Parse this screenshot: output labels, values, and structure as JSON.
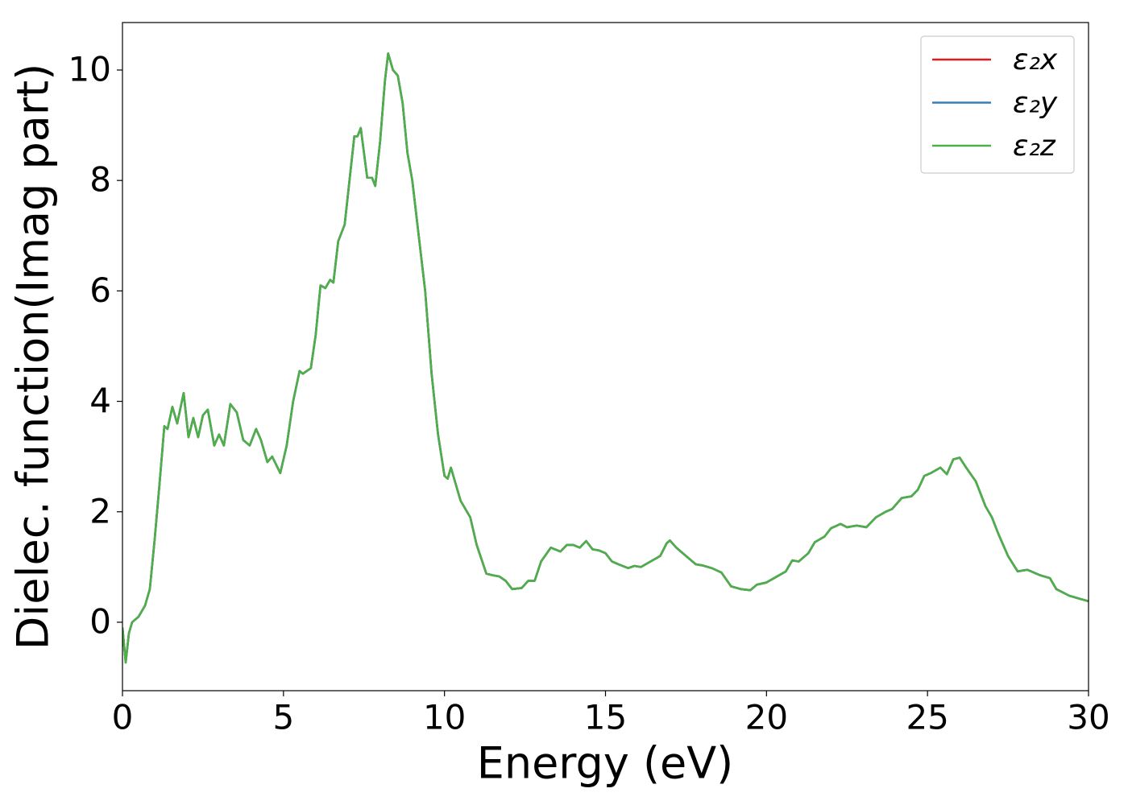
{
  "chart_data": {
    "type": "line",
    "xlabel": "Energy (eV)",
    "ylabel": "Dielec. function(Imag part)",
    "xlim": [
      0,
      30
    ],
    "ylim": [
      -1.24,
      10.86
    ],
    "xticks": [
      0,
      5,
      10,
      15,
      20,
      25,
      30
    ],
    "yticks": [
      0,
      2,
      4,
      6,
      8,
      10
    ],
    "grid": false,
    "legend": "upper right",
    "x": [
      0,
      0.1,
      0.2,
      0.3,
      0.5,
      0.7,
      0.85,
      1.0,
      1.15,
      1.3,
      1.4,
      1.55,
      1.7,
      1.9,
      2.05,
      2.2,
      2.35,
      2.5,
      2.65,
      2.85,
      3.0,
      3.15,
      3.35,
      3.55,
      3.75,
      3.95,
      4.15,
      4.3,
      4.5,
      4.65,
      4.9,
      5.1,
      5.3,
      5.5,
      5.6,
      5.85,
      6.0,
      6.15,
      6.3,
      6.45,
      6.55,
      6.7,
      6.9,
      7.05,
      7.2,
      7.3,
      7.4,
      7.6,
      7.75,
      7.85,
      8.0,
      8.15,
      8.25,
      8.4,
      8.55,
      8.7,
      8.85,
      9.0,
      9.2,
      9.4,
      9.6,
      9.8,
      10.0,
      10.1,
      10.2,
      10.35,
      10.5,
      10.8,
      11.0,
      11.3,
      11.5,
      11.7,
      11.9,
      12.1,
      12.4,
      12.6,
      12.8,
      13.0,
      13.3,
      13.6,
      13.8,
      14.0,
      14.2,
      14.4,
      14.6,
      14.8,
      15.0,
      15.2,
      15.4,
      15.7,
      15.9,
      16.1,
      16.4,
      16.7,
      16.9,
      17.0,
      17.2,
      17.5,
      17.8,
      18.0,
      18.3,
      18.6,
      18.9,
      19.2,
      19.5,
      19.7,
      20.0,
      20.3,
      20.6,
      20.8,
      21.0,
      21.3,
      21.5,
      21.8,
      22.0,
      22.3,
      22.5,
      22.8,
      23.1,
      23.4,
      23.7,
      23.9,
      24.2,
      24.5,
      24.7,
      24.9,
      25.1,
      25.4,
      25.6,
      25.8,
      26.0,
      26.2,
      26.5,
      26.8,
      27.0,
      27.2,
      27.5,
      27.8,
      28.1,
      28.3,
      28.5,
      28.8,
      29.0,
      29.4,
      29.7,
      30.0
    ],
    "series": [
      {
        "name": "ε₂x",
        "color": "#e41a1c",
        "values": [
          -0.1,
          -0.73,
          -0.2,
          0.0,
          0.1,
          0.3,
          0.6,
          1.5,
          2.5,
          3.55,
          3.5,
          3.9,
          3.6,
          4.15,
          3.35,
          3.7,
          3.35,
          3.75,
          3.85,
          3.2,
          3.4,
          3.2,
          3.95,
          3.8,
          3.3,
          3.2,
          3.5,
          3.3,
          2.9,
          3.0,
          2.7,
          3.2,
          4.0,
          4.55,
          4.5,
          4.6,
          5.2,
          6.1,
          6.05,
          6.2,
          6.15,
          6.9,
          7.2,
          8.0,
          8.8,
          8.8,
          8.95,
          8.05,
          8.05,
          7.9,
          8.7,
          9.8,
          10.3,
          10.0,
          9.9,
          9.4,
          8.5,
          8.0,
          7.0,
          6.0,
          4.5,
          3.4,
          2.65,
          2.6,
          2.8,
          2.5,
          2.2,
          1.9,
          1.4,
          0.88,
          0.85,
          0.83,
          0.75,
          0.6,
          0.62,
          0.75,
          0.75,
          1.1,
          1.35,
          1.28,
          1.4,
          1.4,
          1.35,
          1.47,
          1.32,
          1.3,
          1.25,
          1.1,
          1.05,
          0.98,
          1.02,
          1.0,
          1.1,
          1.2,
          1.43,
          1.48,
          1.35,
          1.2,
          1.05,
          1.03,
          0.98,
          0.9,
          0.65,
          0.6,
          0.58,
          0.68,
          0.72,
          0.82,
          0.92,
          1.12,
          1.1,
          1.25,
          1.45,
          1.55,
          1.7,
          1.78,
          1.72,
          1.75,
          1.72,
          1.9,
          2.0,
          2.05,
          2.25,
          2.28,
          2.4,
          2.65,
          2.7,
          2.8,
          2.68,
          2.95,
          2.98,
          2.8,
          2.55,
          2.1,
          1.9,
          1.6,
          1.2,
          0.92,
          0.95,
          0.9,
          0.85,
          0.8,
          0.6,
          0.48,
          0.43,
          0.38
        ]
      },
      {
        "name": "ε₂y",
        "color": "#377eb8",
        "values": [
          -0.1,
          -0.73,
          -0.2,
          0.0,
          0.1,
          0.3,
          0.6,
          1.5,
          2.5,
          3.55,
          3.5,
          3.9,
          3.6,
          4.15,
          3.35,
          3.7,
          3.35,
          3.75,
          3.85,
          3.2,
          3.4,
          3.2,
          3.95,
          3.8,
          3.3,
          3.2,
          3.5,
          3.3,
          2.9,
          3.0,
          2.7,
          3.2,
          4.0,
          4.55,
          4.5,
          4.6,
          5.2,
          6.1,
          6.05,
          6.2,
          6.15,
          6.9,
          7.2,
          8.0,
          8.8,
          8.8,
          8.95,
          8.05,
          8.05,
          7.9,
          8.7,
          9.8,
          10.3,
          10.0,
          9.9,
          9.4,
          8.5,
          8.0,
          7.0,
          6.0,
          4.5,
          3.4,
          2.65,
          2.6,
          2.8,
          2.5,
          2.2,
          1.9,
          1.4,
          0.88,
          0.85,
          0.83,
          0.75,
          0.6,
          0.62,
          0.75,
          0.75,
          1.1,
          1.35,
          1.28,
          1.4,
          1.4,
          1.35,
          1.47,
          1.32,
          1.3,
          1.25,
          1.1,
          1.05,
          0.98,
          1.02,
          1.0,
          1.1,
          1.2,
          1.43,
          1.48,
          1.35,
          1.2,
          1.05,
          1.03,
          0.98,
          0.9,
          0.65,
          0.6,
          0.58,
          0.68,
          0.72,
          0.82,
          0.92,
          1.12,
          1.1,
          1.25,
          1.45,
          1.55,
          1.7,
          1.78,
          1.72,
          1.75,
          1.72,
          1.9,
          2.0,
          2.05,
          2.25,
          2.28,
          2.4,
          2.65,
          2.7,
          2.8,
          2.68,
          2.95,
          2.98,
          2.8,
          2.55,
          2.1,
          1.9,
          1.6,
          1.2,
          0.92,
          0.95,
          0.9,
          0.85,
          0.8,
          0.6,
          0.48,
          0.43,
          0.38
        ]
      },
      {
        "name": "ε₂z",
        "color": "#4daf4a",
        "values": [
          -0.1,
          -0.73,
          -0.2,
          0.0,
          0.1,
          0.3,
          0.6,
          1.5,
          2.5,
          3.55,
          3.5,
          3.9,
          3.6,
          4.15,
          3.35,
          3.7,
          3.35,
          3.75,
          3.85,
          3.2,
          3.4,
          3.2,
          3.95,
          3.8,
          3.3,
          3.2,
          3.5,
          3.3,
          2.9,
          3.0,
          2.7,
          3.2,
          4.0,
          4.55,
          4.5,
          4.6,
          5.2,
          6.1,
          6.05,
          6.2,
          6.15,
          6.9,
          7.2,
          8.0,
          8.8,
          8.8,
          8.95,
          8.05,
          8.05,
          7.9,
          8.7,
          9.8,
          10.3,
          10.0,
          9.9,
          9.4,
          8.5,
          8.0,
          7.0,
          6.0,
          4.5,
          3.4,
          2.65,
          2.6,
          2.8,
          2.5,
          2.2,
          1.9,
          1.4,
          0.88,
          0.85,
          0.83,
          0.75,
          0.6,
          0.62,
          0.75,
          0.75,
          1.1,
          1.35,
          1.28,
          1.4,
          1.4,
          1.35,
          1.47,
          1.32,
          1.3,
          1.25,
          1.1,
          1.05,
          0.98,
          1.02,
          1.0,
          1.1,
          1.2,
          1.43,
          1.48,
          1.35,
          1.2,
          1.05,
          1.03,
          0.98,
          0.9,
          0.65,
          0.6,
          0.58,
          0.68,
          0.72,
          0.82,
          0.92,
          1.12,
          1.1,
          1.25,
          1.45,
          1.55,
          1.7,
          1.78,
          1.72,
          1.75,
          1.72,
          1.9,
          2.0,
          2.05,
          2.25,
          2.28,
          2.4,
          2.65,
          2.7,
          2.8,
          2.68,
          2.95,
          2.98,
          2.8,
          2.55,
          2.1,
          1.9,
          1.6,
          1.2,
          0.92,
          0.95,
          0.9,
          0.85,
          0.8,
          0.6,
          0.48,
          0.43,
          0.38
        ]
      }
    ]
  }
}
